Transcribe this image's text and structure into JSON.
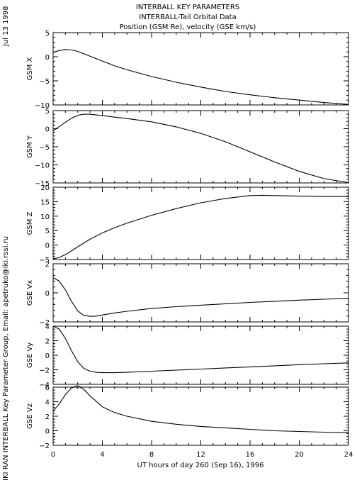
{
  "header": {
    "title_lines": [
      "INTERBALL KEY PARAMETERS",
      "INTERBALL-Tail Orbital Data",
      "Position (GSM Re), velocity (GSE km/s)"
    ]
  },
  "side": {
    "date": "Jul 13 1998",
    "credit": "IKI RAN INTERBALL Key Parameter Group, Email: apetruko@iki.rssi.ru"
  },
  "chart_data": [
    {
      "type": "line",
      "ylabel": "GSM X",
      "ylim": [
        -10,
        5
      ],
      "yticks": [
        5,
        0,
        -5,
        -10
      ],
      "xlim": [
        0,
        24
      ],
      "series": [
        {
          "x": [
            0,
            0.5,
            1,
            1.5,
            2,
            3,
            4,
            5,
            6,
            8,
            10,
            12,
            14,
            16,
            18,
            20,
            22,
            24
          ],
          "values": [
            0.9,
            1.3,
            1.5,
            1.4,
            1.1,
            0.1,
            -0.9,
            -1.9,
            -2.7,
            -4.1,
            -5.3,
            -6.3,
            -7.2,
            -7.9,
            -8.5,
            -9.0,
            -9.5,
            -9.9
          ]
        }
      ]
    },
    {
      "type": "line",
      "ylabel": "GSM Y",
      "ylim": [
        -15,
        5
      ],
      "yticks": [
        5,
        0,
        -5,
        -10,
        -15
      ],
      "xlim": [
        0,
        24
      ],
      "series": [
        {
          "x": [
            0,
            0.5,
            1,
            1.5,
            2,
            2.5,
            3,
            4,
            5,
            6,
            8,
            10,
            12,
            14,
            16,
            18,
            20,
            22,
            24
          ],
          "values": [
            -0.6,
            0.6,
            1.8,
            2.9,
            3.7,
            4.0,
            4.0,
            3.6,
            3.2,
            2.8,
            1.9,
            0.5,
            -1.3,
            -3.6,
            -6.4,
            -9.2,
            -11.8,
            -13.8,
            -14.9
          ]
        }
      ]
    },
    {
      "type": "line",
      "ylabel": "GSM Z",
      "ylim": [
        -5,
        20
      ],
      "yticks": [
        20,
        15,
        10,
        5,
        0,
        -5
      ],
      "xlim": [
        0,
        24
      ],
      "series": [
        {
          "x": [
            0,
            0.5,
            1,
            1.5,
            2,
            3,
            4,
            5,
            6,
            8,
            10,
            12,
            14,
            16,
            17,
            18,
            20,
            22,
            24
          ],
          "values": [
            -4.8,
            -4.3,
            -3.3,
            -2.0,
            -0.6,
            2.0,
            4.2,
            6.0,
            7.6,
            10.3,
            12.6,
            14.6,
            16.1,
            17.1,
            17.2,
            17.1,
            16.9,
            16.8,
            16.8
          ]
        }
      ]
    },
    {
      "type": "line",
      "ylabel": "GSE Vx",
      "ylim": [
        -2,
        2
      ],
      "yticks": [
        2,
        0,
        -2
      ],
      "xlim": [
        0,
        24
      ],
      "series": [
        {
          "x": [
            0,
            0.5,
            1,
            1.5,
            2,
            2.5,
            3,
            3.5,
            4,
            5,
            6,
            8,
            10,
            12,
            14,
            16,
            18,
            20,
            22,
            24
          ],
          "values": [
            1.05,
            0.8,
            0.2,
            -0.6,
            -1.25,
            -1.55,
            -1.62,
            -1.6,
            -1.52,
            -1.38,
            -1.27,
            -1.08,
            -0.95,
            -0.85,
            -0.75,
            -0.66,
            -0.58,
            -0.5,
            -0.44,
            -0.38
          ]
        }
      ]
    },
    {
      "type": "line",
      "ylabel": "GSE Vy",
      "ylim": [
        -4,
        4
      ],
      "yticks": [
        4,
        2,
        0,
        -2,
        -4
      ],
      "xlim": [
        0,
        24
      ],
      "series": [
        {
          "x": [
            0,
            0.5,
            1,
            1.5,
            2,
            2.5,
            3,
            3.5,
            4,
            5,
            6,
            8,
            10,
            12,
            14,
            16,
            18,
            20,
            22,
            24
          ],
          "values": [
            4.0,
            3.6,
            2.3,
            0.6,
            -0.9,
            -1.8,
            -2.2,
            -2.35,
            -2.4,
            -2.4,
            -2.35,
            -2.2,
            -2.05,
            -1.9,
            -1.75,
            -1.6,
            -1.45,
            -1.3,
            -1.17,
            -1.05
          ]
        }
      ]
    },
    {
      "type": "line",
      "ylabel": "GSE Vz",
      "ylim": [
        -2,
        6
      ],
      "yticks": [
        6,
        4,
        2,
        0,
        -2
      ],
      "xlim": [
        0,
        24
      ],
      "series": [
        {
          "x": [
            0,
            0.5,
            1,
            1.5,
            2,
            2.5,
            3,
            4,
            5,
            6,
            8,
            10,
            12,
            14,
            16,
            18,
            20,
            22,
            24
          ],
          "values": [
            2.7,
            3.7,
            5.0,
            5.9,
            6.2,
            5.7,
            4.8,
            3.3,
            2.5,
            2.0,
            1.3,
            0.9,
            0.6,
            0.4,
            0.2,
            0.0,
            -0.1,
            -0.2,
            -0.25
          ]
        }
      ]
    }
  ],
  "xaxis": {
    "ticks": [
      0,
      4,
      8,
      12,
      16,
      20,
      24
    ],
    "label": "UT hours of day 260 (Sep 16), 1996"
  }
}
